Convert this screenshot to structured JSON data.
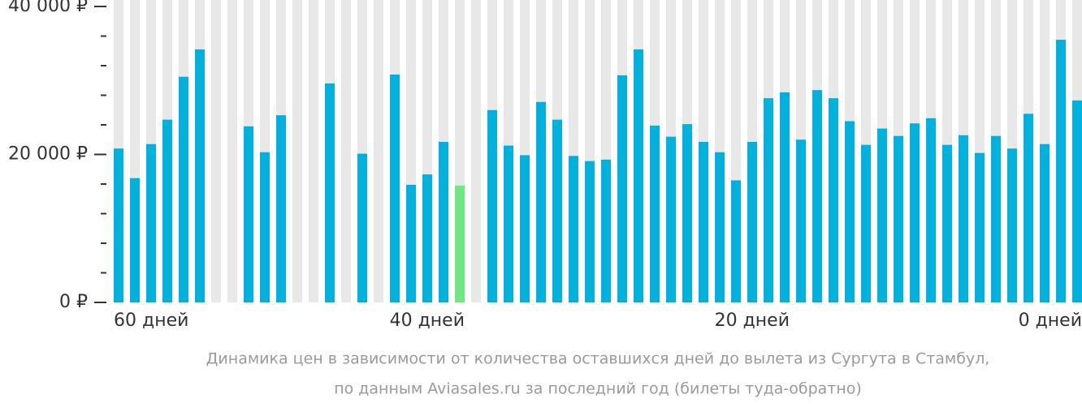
{
  "chart_data": {
    "type": "bar",
    "categories": [
      "60 дней",
      null,
      null,
      null,
      null,
      null,
      null,
      null,
      null,
      null,
      null,
      null,
      null,
      null,
      null,
      null,
      null,
      null,
      null,
      null,
      null,
      "40 дней",
      null,
      null,
      null,
      null,
      null,
      null,
      null,
      null,
      null,
      null,
      null,
      null,
      null,
      null,
      null,
      null,
      null,
      null,
      null,
      "20 дней",
      null,
      null,
      null,
      null,
      null,
      null,
      null,
      null,
      null,
      null,
      null,
      null,
      null,
      null,
      null,
      null,
      null,
      "0 дней"
    ],
    "values": [
      20800,
      16800,
      21400,
      24700,
      30500,
      34200,
      null,
      null,
      23800,
      20300,
      25300,
      null,
      null,
      29600,
      null,
      20100,
      null,
      30800,
      15900,
      17300,
      21700,
      15800,
      null,
      26000,
      21200,
      19900,
      27100,
      24700,
      19800,
      19100,
      19300,
      30700,
      34200,
      23900,
      22400,
      24100,
      21700,
      20300,
      16500,
      21700,
      27600,
      28400,
      22000,
      28700,
      27600,
      24500,
      21300,
      23500,
      22500,
      24200,
      24900,
      21300,
      22600,
      20200,
      22500,
      20800,
      25500,
      21400,
      35500,
      27300
    ],
    "colors": [
      "#00b1de",
      "#00b1de",
      "#00b1de",
      "#00b1de",
      "#00b1de",
      "#00b1de",
      "#00b1de",
      "#00b1de",
      "#00b1de",
      "#00b1de",
      "#00b1de",
      "#00b1de",
      "#00b1de",
      "#00b1de",
      "#00b1de",
      "#00b1de",
      "#00b1de",
      "#00b1de",
      "#00b1de",
      "#00b1de",
      "#00b1de",
      "#6ee87f",
      "#00b1de",
      "#00b1de",
      "#00b1de",
      "#00b1de",
      "#00b1de",
      "#00b1de",
      "#00b1de",
      "#00b1de",
      "#00b1de",
      "#00b1de",
      "#00b1de",
      "#00b1de",
      "#00b1de",
      "#00b1de",
      "#00b1de",
      "#00b1de",
      "#00b1de",
      "#00b1de",
      "#00b1de",
      "#00b1de",
      "#00b1de",
      "#00b1de",
      "#00b1de",
      "#00b1de",
      "#00b1de",
      "#00b1de",
      "#00b1de",
      "#00b1de",
      "#00b1de",
      "#00b1de",
      "#00b1de",
      "#00b1de",
      "#00b1de",
      "#00b1de",
      "#00b1de",
      "#00b1de",
      "#00b1de",
      "#00b1de"
    ],
    "ylim": [
      0,
      40000
    ],
    "yticks": [
      {
        "value": 0,
        "label": "0 ₽"
      },
      {
        "value": 20000,
        "label": "20 000 ₽"
      },
      {
        "value": 40000,
        "label": "40 000 ₽"
      }
    ],
    "yticks_minor": [
      4000,
      8000,
      12000,
      16000,
      24000,
      28000,
      32000,
      36000
    ],
    "caption": [
      "Динамика цен в зависимости от количества оставшихся дней до вылета из Сургута в Стамбул,",
      "по данным Aviasales.ru за последний год (билеты туда-обратно)"
    ]
  }
}
